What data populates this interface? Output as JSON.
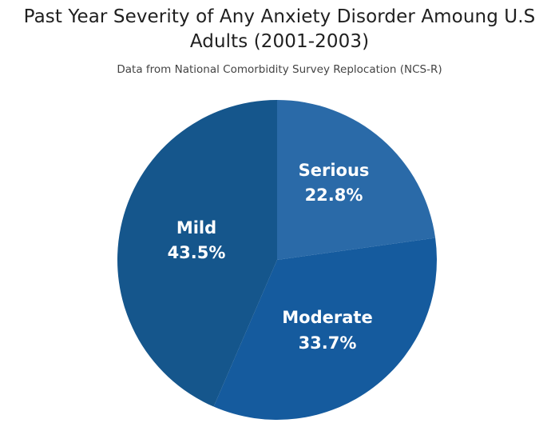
{
  "chart_data": {
    "type": "pie",
    "title_line1": "Past Year Severity of Any Anxiety Disorder Amoung U.S",
    "title_line2": "Adults (2001-2003)",
    "subtitle": "Data from National Comorbidity Survey Replocation (NCS-R)",
    "start": "12 o'clock, clockwise",
    "slices": [
      {
        "label": "Serious",
        "value": 22.8,
        "value_label": "22.8%",
        "color": "#2a6aa8"
      },
      {
        "label": "Moderate",
        "value": 33.7,
        "value_label": "33.7%",
        "color": "#155b9e"
      },
      {
        "label": "Mild",
        "value": 43.5,
        "value_label": "43.5%",
        "color": "#15568c"
      }
    ]
  }
}
